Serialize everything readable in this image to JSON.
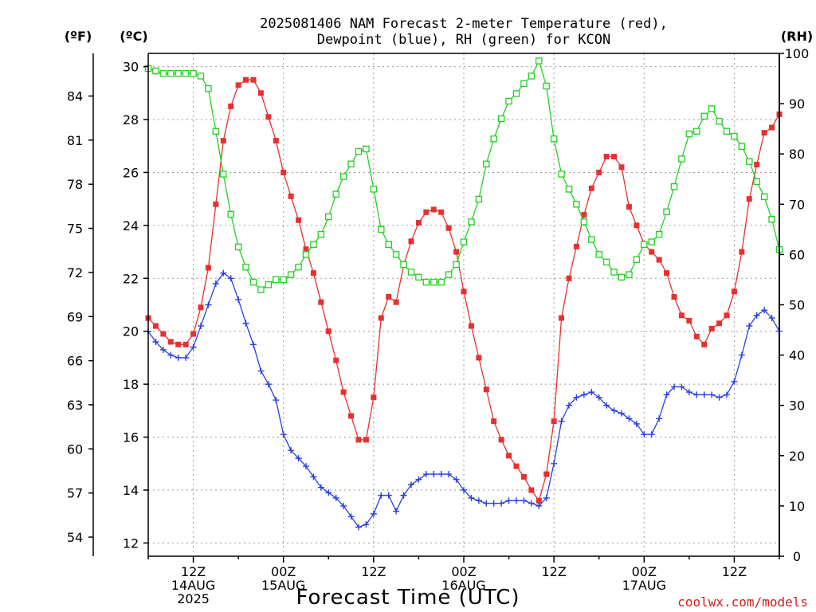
{
  "chart_data": {
    "type": "line",
    "title_line1": "2025081406 NAM Forecast 2-meter Temperature (red),",
    "title_line2": "Dewpoint (blue), RH (green) for KCON",
    "xlabel": "Forecast Time (UTC)",
    "watermark": "coolwx.com/models",
    "units": {
      "fahrenheit": "(ºF)",
      "celsius": "(ºC)",
      "rh": "(RH)"
    },
    "x_hours_range": [
      6,
      90
    ],
    "x_ticks": [
      {
        "h": 12,
        "lines": [
          "12Z",
          "14AUG",
          "2025"
        ]
      },
      {
        "h": 24,
        "lines": [
          "00Z",
          "15AUG"
        ]
      },
      {
        "h": 36,
        "lines": [
          "12Z"
        ]
      },
      {
        "h": 48,
        "lines": [
          "00Z",
          "16AUG"
        ]
      },
      {
        "h": 60,
        "lines": [
          "12Z"
        ]
      },
      {
        "h": 72,
        "lines": [
          "00Z",
          "17AUG"
        ]
      },
      {
        "h": 84,
        "lines": [
          "12Z"
        ]
      }
    ],
    "ylim_c": [
      11.5,
      30.5
    ],
    "yticks_c": [
      12,
      14,
      16,
      18,
      20,
      22,
      24,
      26,
      28,
      30
    ],
    "yticks_f": [
      54,
      57,
      60,
      63,
      66,
      69,
      72,
      75,
      78,
      81,
      84
    ],
    "ylim_rh": [
      0,
      100
    ],
    "yticks_rh": [
      0,
      10,
      20,
      30,
      40,
      50,
      60,
      70,
      80,
      90,
      100
    ],
    "grid": true,
    "colors": {
      "temperature": "#e83030",
      "dewpoint": "#2a3fe0",
      "rh": "#22d022"
    },
    "series": [
      {
        "key": "temperature",
        "units": "C",
        "points": [
          [
            6,
            20.5
          ],
          [
            7,
            20.2
          ],
          [
            8,
            19.9
          ],
          [
            9,
            19.6
          ],
          [
            10,
            19.5
          ],
          [
            11,
            19.5
          ],
          [
            12,
            19.9
          ],
          [
            13,
            20.9
          ],
          [
            14,
            22.4
          ],
          [
            15,
            24.8
          ],
          [
            16,
            27.2
          ],
          [
            17,
            28.5
          ],
          [
            18,
            29.3
          ],
          [
            19,
            29.5
          ],
          [
            20,
            29.5
          ],
          [
            21,
            29.0
          ],
          [
            22,
            28.1
          ],
          [
            23,
            27.2
          ],
          [
            24,
            26.0
          ],
          [
            25,
            25.1
          ],
          [
            26,
            24.2
          ],
          [
            27,
            23.1
          ],
          [
            28,
            22.2
          ],
          [
            29,
            21.1
          ],
          [
            30,
            20.0
          ],
          [
            31,
            18.9
          ],
          [
            32,
            17.7
          ],
          [
            33,
            16.8
          ],
          [
            34,
            15.9
          ],
          [
            35,
            15.9
          ],
          [
            36,
            17.5
          ],
          [
            37,
            20.5
          ],
          [
            38,
            21.3
          ],
          [
            39,
            21.1
          ],
          [
            40,
            22.5
          ],
          [
            41,
            23.4
          ],
          [
            42,
            24.1
          ],
          [
            43,
            24.5
          ],
          [
            44,
            24.6
          ],
          [
            45,
            24.5
          ],
          [
            46,
            23.9
          ],
          [
            47,
            23.0
          ],
          [
            48,
            21.5
          ],
          [
            49,
            20.2
          ],
          [
            50,
            19.0
          ],
          [
            51,
            17.8
          ],
          [
            52,
            16.6
          ],
          [
            53,
            15.9
          ],
          [
            54,
            15.3
          ],
          [
            55,
            14.9
          ],
          [
            56,
            14.5
          ],
          [
            57,
            14.0
          ],
          [
            58,
            13.6
          ],
          [
            59,
            14.6
          ],
          [
            60,
            16.6
          ],
          [
            61,
            20.5
          ],
          [
            62,
            22.0
          ],
          [
            63,
            23.2
          ],
          [
            64,
            24.4
          ],
          [
            65,
            25.4
          ],
          [
            66,
            26.0
          ],
          [
            67,
            26.6
          ],
          [
            68,
            26.6
          ],
          [
            69,
            26.2
          ],
          [
            70,
            24.7
          ],
          [
            71,
            24.0
          ],
          [
            72,
            23.3
          ],
          [
            73,
            23.0
          ],
          [
            74,
            22.7
          ],
          [
            75,
            22.2
          ],
          [
            76,
            21.3
          ],
          [
            77,
            20.6
          ],
          [
            78,
            20.4
          ],
          [
            79,
            19.8
          ],
          [
            80,
            19.5
          ],
          [
            81,
            20.1
          ],
          [
            82,
            20.3
          ],
          [
            83,
            20.6
          ],
          [
            84,
            21.5
          ],
          [
            85,
            23.0
          ],
          [
            86,
            25.0
          ],
          [
            87,
            26.3
          ],
          [
            88,
            27.5
          ],
          [
            89,
            27.7
          ],
          [
            90,
            28.2
          ]
        ]
      },
      {
        "key": "dewpoint",
        "units": "C",
        "points": [
          [
            6,
            20.0
          ],
          [
            7,
            19.6
          ],
          [
            8,
            19.3
          ],
          [
            9,
            19.1
          ],
          [
            10,
            19.0
          ],
          [
            11,
            19.0
          ],
          [
            12,
            19.4
          ],
          [
            13,
            20.2
          ],
          [
            14,
            21.0
          ],
          [
            15,
            21.8
          ],
          [
            16,
            22.2
          ],
          [
            17,
            22.0
          ],
          [
            18,
            21.2
          ],
          [
            19,
            20.3
          ],
          [
            20,
            19.5
          ],
          [
            21,
            18.5
          ],
          [
            22,
            18.0
          ],
          [
            23,
            17.4
          ],
          [
            24,
            16.1
          ],
          [
            25,
            15.5
          ],
          [
            26,
            15.2
          ],
          [
            27,
            14.9
          ],
          [
            28,
            14.5
          ],
          [
            29,
            14.1
          ],
          [
            30,
            13.9
          ],
          [
            31,
            13.7
          ],
          [
            32,
            13.4
          ],
          [
            33,
            13.0
          ],
          [
            34,
            12.6
          ],
          [
            35,
            12.7
          ],
          [
            36,
            13.1
          ],
          [
            37,
            13.8
          ],
          [
            38,
            13.8
          ],
          [
            39,
            13.2
          ],
          [
            40,
            13.8
          ],
          [
            41,
            14.2
          ],
          [
            42,
            14.4
          ],
          [
            43,
            14.6
          ],
          [
            44,
            14.6
          ],
          [
            45,
            14.6
          ],
          [
            46,
            14.6
          ],
          [
            47,
            14.4
          ],
          [
            48,
            14.0
          ],
          [
            49,
            13.7
          ],
          [
            50,
            13.6
          ],
          [
            51,
            13.5
          ],
          [
            52,
            13.5
          ],
          [
            53,
            13.5
          ],
          [
            54,
            13.6
          ],
          [
            55,
            13.6
          ],
          [
            56,
            13.6
          ],
          [
            57,
            13.5
          ],
          [
            58,
            13.4
          ],
          [
            59,
            13.7
          ],
          [
            60,
            15.0
          ],
          [
            61,
            16.6
          ],
          [
            62,
            17.2
          ],
          [
            63,
            17.5
          ],
          [
            64,
            17.6
          ],
          [
            65,
            17.7
          ],
          [
            66,
            17.5
          ],
          [
            67,
            17.2
          ],
          [
            68,
            17.0
          ],
          [
            69,
            16.9
          ],
          [
            70,
            16.7
          ],
          [
            71,
            16.5
          ],
          [
            72,
            16.1
          ],
          [
            73,
            16.1
          ],
          [
            74,
            16.7
          ],
          [
            75,
            17.6
          ],
          [
            76,
            17.9
          ],
          [
            77,
            17.9
          ],
          [
            78,
            17.7
          ],
          [
            79,
            17.6
          ],
          [
            80,
            17.6
          ],
          [
            81,
            17.6
          ],
          [
            82,
            17.5
          ],
          [
            83,
            17.6
          ],
          [
            84,
            18.1
          ],
          [
            85,
            19.1
          ],
          [
            86,
            20.2
          ],
          [
            87,
            20.6
          ],
          [
            88,
            20.8
          ],
          [
            89,
            20.5
          ],
          [
            90,
            20.0
          ]
        ]
      },
      {
        "key": "rh",
        "units": "%",
        "points": [
          [
            6,
            97.0
          ],
          [
            7,
            96.5
          ],
          [
            8,
            96.0
          ],
          [
            9,
            96.0
          ],
          [
            10,
            96.0
          ],
          [
            11,
            96.0
          ],
          [
            12,
            96.0
          ],
          [
            13,
            95.5
          ],
          [
            14,
            93.0
          ],
          [
            15,
            84.5
          ],
          [
            16,
            76.0
          ],
          [
            17,
            68.0
          ],
          [
            18,
            61.5
          ],
          [
            19,
            57.5
          ],
          [
            20,
            54.5
          ],
          [
            21,
            53.0
          ],
          [
            22,
            54.0
          ],
          [
            23,
            55.0
          ],
          [
            24,
            55.0
          ],
          [
            25,
            56.0
          ],
          [
            26,
            57.5
          ],
          [
            27,
            60.0
          ],
          [
            28,
            62.0
          ],
          [
            29,
            64.0
          ],
          [
            30,
            67.5
          ],
          [
            31,
            72.0
          ],
          [
            32,
            75.5
          ],
          [
            33,
            78.0
          ],
          [
            34,
            80.5
          ],
          [
            35,
            81.0
          ],
          [
            36,
            73.0
          ],
          [
            37,
            65.0
          ],
          [
            38,
            62.0
          ],
          [
            39,
            60.0
          ],
          [
            40,
            58.0
          ],
          [
            41,
            56.5
          ],
          [
            42,
            55.5
          ],
          [
            43,
            54.5
          ],
          [
            44,
            54.5
          ],
          [
            45,
            54.5
          ],
          [
            46,
            56.0
          ],
          [
            47,
            58.0
          ],
          [
            48,
            62.5
          ],
          [
            49,
            66.5
          ],
          [
            50,
            71.0
          ],
          [
            51,
            78.0
          ],
          [
            52,
            83.0
          ],
          [
            53,
            87.0
          ],
          [
            54,
            90.5
          ],
          [
            55,
            92.0
          ],
          [
            56,
            94.0
          ],
          [
            57,
            95.5
          ],
          [
            58,
            98.5
          ],
          [
            59,
            93.5
          ],
          [
            60,
            83.0
          ],
          [
            61,
            76.0
          ],
          [
            62,
            73.0
          ],
          [
            63,
            70.0
          ],
          [
            64,
            66.5
          ],
          [
            65,
            63.0
          ],
          [
            66,
            60.0
          ],
          [
            67,
            58.5
          ],
          [
            68,
            56.5
          ],
          [
            69,
            55.5
          ],
          [
            70,
            56.0
          ],
          [
            71,
            59.0
          ],
          [
            72,
            62.0
          ],
          [
            73,
            62.5
          ],
          [
            74,
            64.0
          ],
          [
            75,
            68.5
          ],
          [
            76,
            73.5
          ],
          [
            77,
            79.0
          ],
          [
            78,
            84.0
          ],
          [
            79,
            84.5
          ],
          [
            80,
            87.5
          ],
          [
            81,
            89.0
          ],
          [
            82,
            86.5
          ],
          [
            83,
            84.5
          ],
          [
            84,
            83.5
          ],
          [
            85,
            81.5
          ],
          [
            86,
            78.5
          ],
          [
            87,
            74.5
          ],
          [
            88,
            71.5
          ],
          [
            89,
            67.0
          ],
          [
            90,
            61.0
          ]
        ]
      }
    ]
  }
}
